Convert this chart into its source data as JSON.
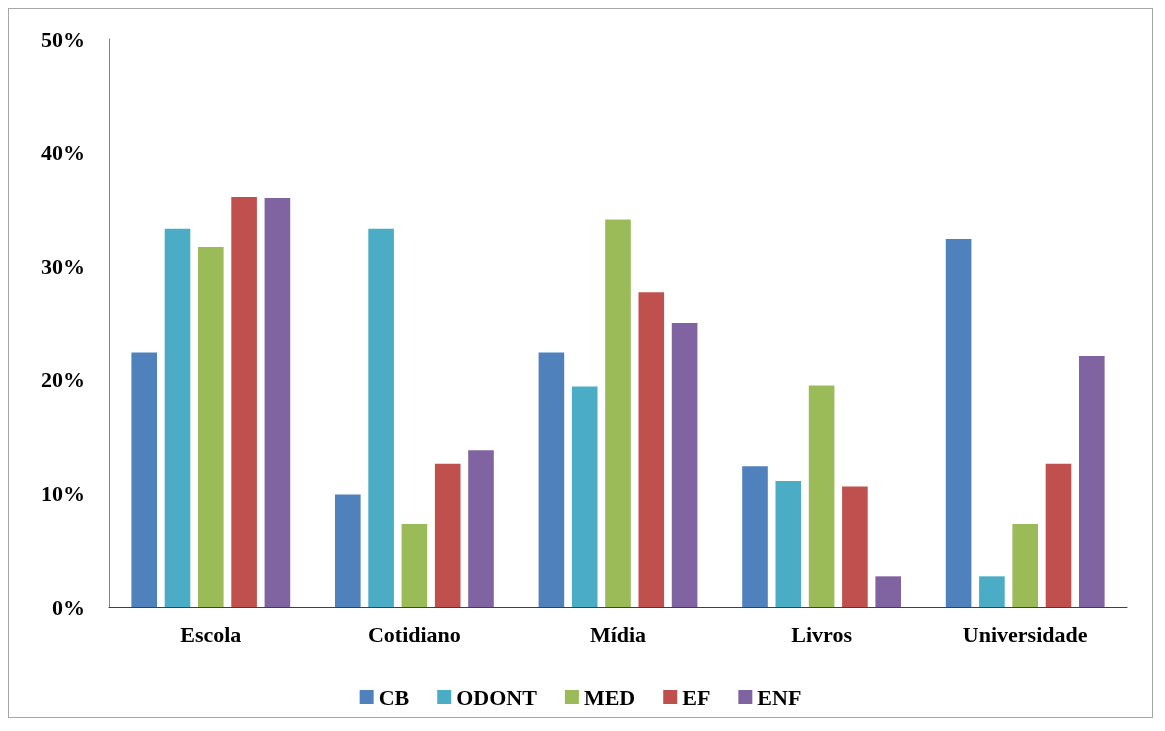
{
  "chart_data": {
    "type": "bar",
    "categories": [
      "Escola",
      "Cotidiano",
      "Mídia",
      "Livros",
      "Universidade"
    ],
    "series": [
      {
        "name": "CB",
        "color": "#4f81bd",
        "values": [
          22.4,
          9.9,
          22.4,
          12.4,
          32.4
        ]
      },
      {
        "name": "ODONT",
        "color": "#4bacc6",
        "values": [
          33.3,
          33.3,
          19.4,
          11.1,
          2.7
        ]
      },
      {
        "name": "MED",
        "color": "#9bbb59",
        "values": [
          31.7,
          7.3,
          34.1,
          19.5,
          7.3
        ]
      },
      {
        "name": "EF",
        "color": "#c0504d",
        "values": [
          36.1,
          12.6,
          27.7,
          10.6,
          12.6
        ]
      },
      {
        "name": "ENF",
        "color": "#8064a2",
        "values": [
          36.0,
          13.8,
          25.0,
          2.7,
          22.1
        ]
      }
    ],
    "ylim": [
      0,
      50
    ],
    "yticks": [
      {
        "value": 0,
        "label": "0%"
      },
      {
        "value": 10,
        "label": "10%"
      },
      {
        "value": 20,
        "label": "20%"
      },
      {
        "value": 30,
        "label": "30%"
      },
      {
        "value": 40,
        "label": "40%"
      },
      {
        "value": 50,
        "label": "50%"
      }
    ],
    "grid": false,
    "legend": "bottom"
  }
}
